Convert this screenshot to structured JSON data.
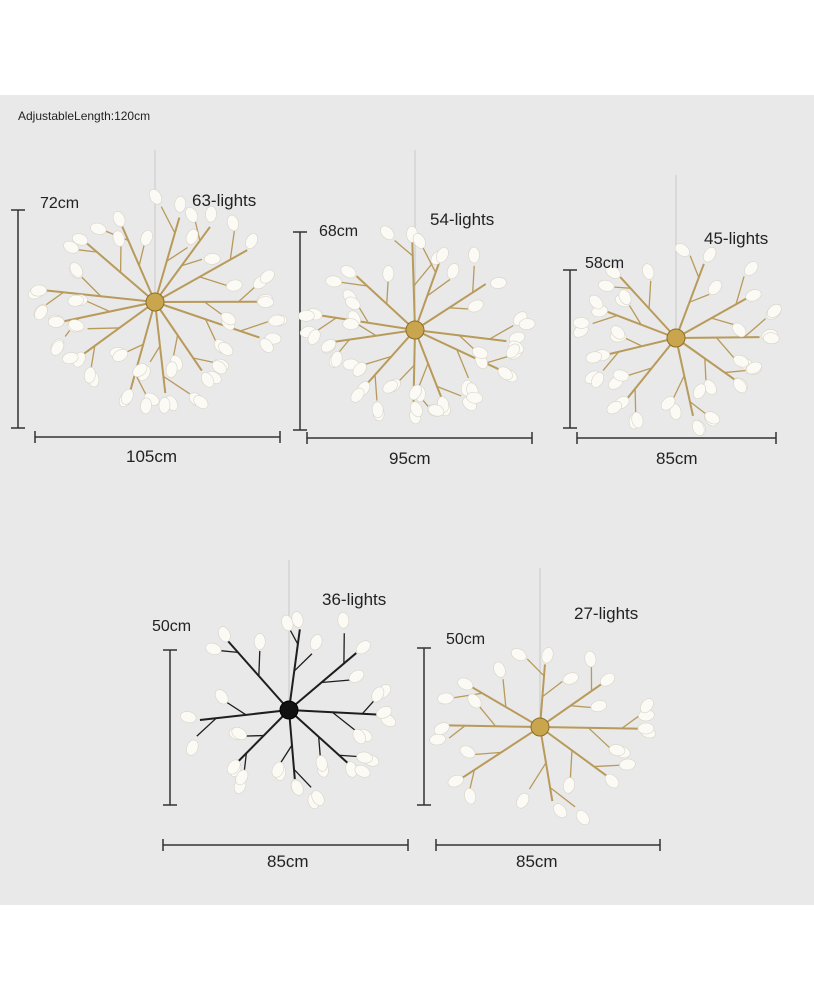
{
  "header_note": "AdjustableLength:120cm",
  "colors": {
    "background": "#e9e9e9",
    "gold_frame": "#b89a5a",
    "black_frame": "#1e1e1e",
    "leaf": "#fbfaf5",
    "dimension_line": "#333333"
  },
  "models": [
    {
      "lights": "63-lights",
      "height": "72cm",
      "width": "105cm",
      "finish": "gold"
    },
    {
      "lights": "54-lights",
      "height": "68cm",
      "width": "95cm",
      "finish": "gold"
    },
    {
      "lights": "45-lights",
      "height": "58cm",
      "width": "85cm",
      "finish": "gold"
    },
    {
      "lights": "36-lights",
      "height": "50cm",
      "width": "85cm",
      "finish": "black"
    },
    {
      "lights": "27-lights",
      "height": "50cm",
      "width": "85cm",
      "finish": "gold"
    }
  ]
}
